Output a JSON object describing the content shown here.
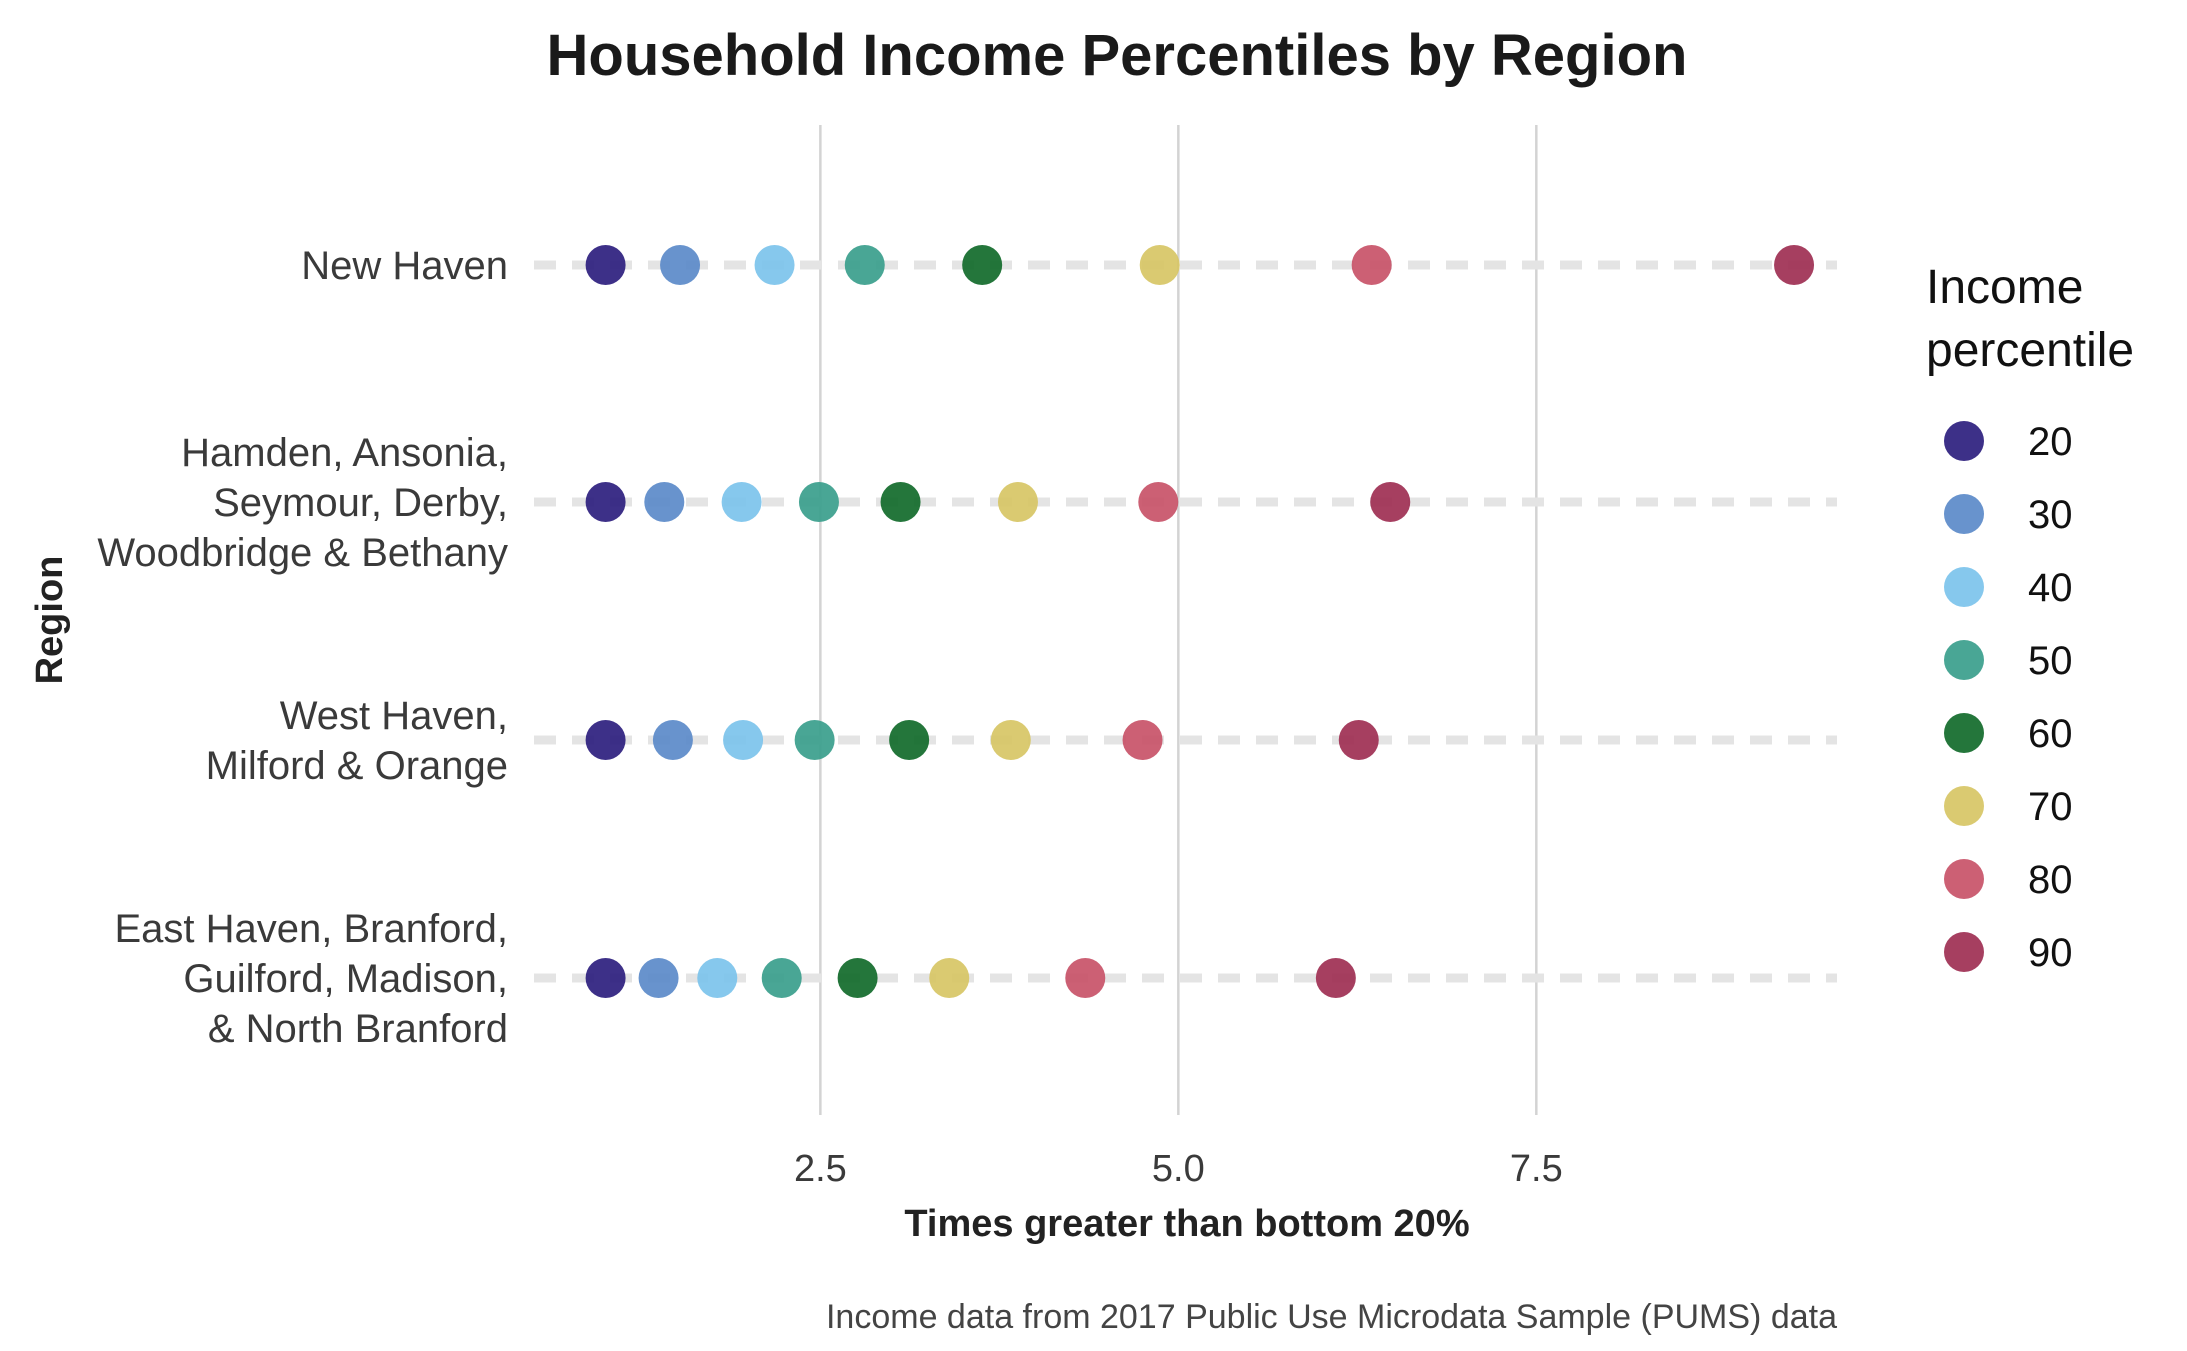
{
  "chart_data": {
    "type": "scatter",
    "title": "Household Income Percentiles by Region",
    "xlabel": "Times greater than bottom 20%",
    "ylabel": "Region",
    "caption": "Income data from 2017 Public Use Microdata Sample (PUMS) data",
    "xlim": [
      0.5,
      9.6
    ],
    "x_ticks": [
      2.5,
      5.0,
      7.5
    ],
    "x_tick_labels": [
      "2.5",
      "5.0",
      "7.5"
    ],
    "grid": "vertical major gridlines; dashed horizontal guide per region",
    "legend": {
      "title_lines": [
        "Income",
        "percentile"
      ],
      "placement": "right"
    },
    "regions": [
      {
        "lines": [
          "New Haven"
        ]
      },
      {
        "lines": [
          "Hamden, Ansonia,",
          "Seymour, Derby,",
          "Woodbridge & Bethany"
        ]
      },
      {
        "lines": [
          "West Haven,",
          "Milford & Orange"
        ]
      },
      {
        "lines": [
          "East Haven, Branford,",
          "Guilford, Madison,",
          "& North Branford"
        ]
      }
    ],
    "series": [
      {
        "name": "20",
        "color": "#2d1e7e",
        "values": [
          1.0,
          1.0,
          1.0,
          1.0
        ]
      },
      {
        "name": "30",
        "color": "#5b8ac9",
        "values": [
          1.52,
          1.41,
          1.47,
          1.37
        ]
      },
      {
        "name": "40",
        "color": "#7cc3ec",
        "values": [
          2.18,
          1.95,
          1.96,
          1.78
        ]
      },
      {
        "name": "50",
        "color": "#3a9e8c",
        "values": [
          2.81,
          2.49,
          2.46,
          2.23
        ]
      },
      {
        "name": "60",
        "color": "#116a2a",
        "values": [
          3.63,
          3.06,
          3.12,
          2.76
        ]
      },
      {
        "name": "70",
        "color": "#d7c565",
        "values": [
          4.87,
          3.88,
          3.83,
          3.4
        ]
      },
      {
        "name": "80",
        "color": "#c85368",
        "values": [
          6.35,
          4.86,
          4.75,
          4.35
        ]
      },
      {
        "name": "90",
        "color": "#9e2f52",
        "values": [
          9.3,
          6.48,
          6.26,
          6.1
        ]
      }
    ]
  }
}
